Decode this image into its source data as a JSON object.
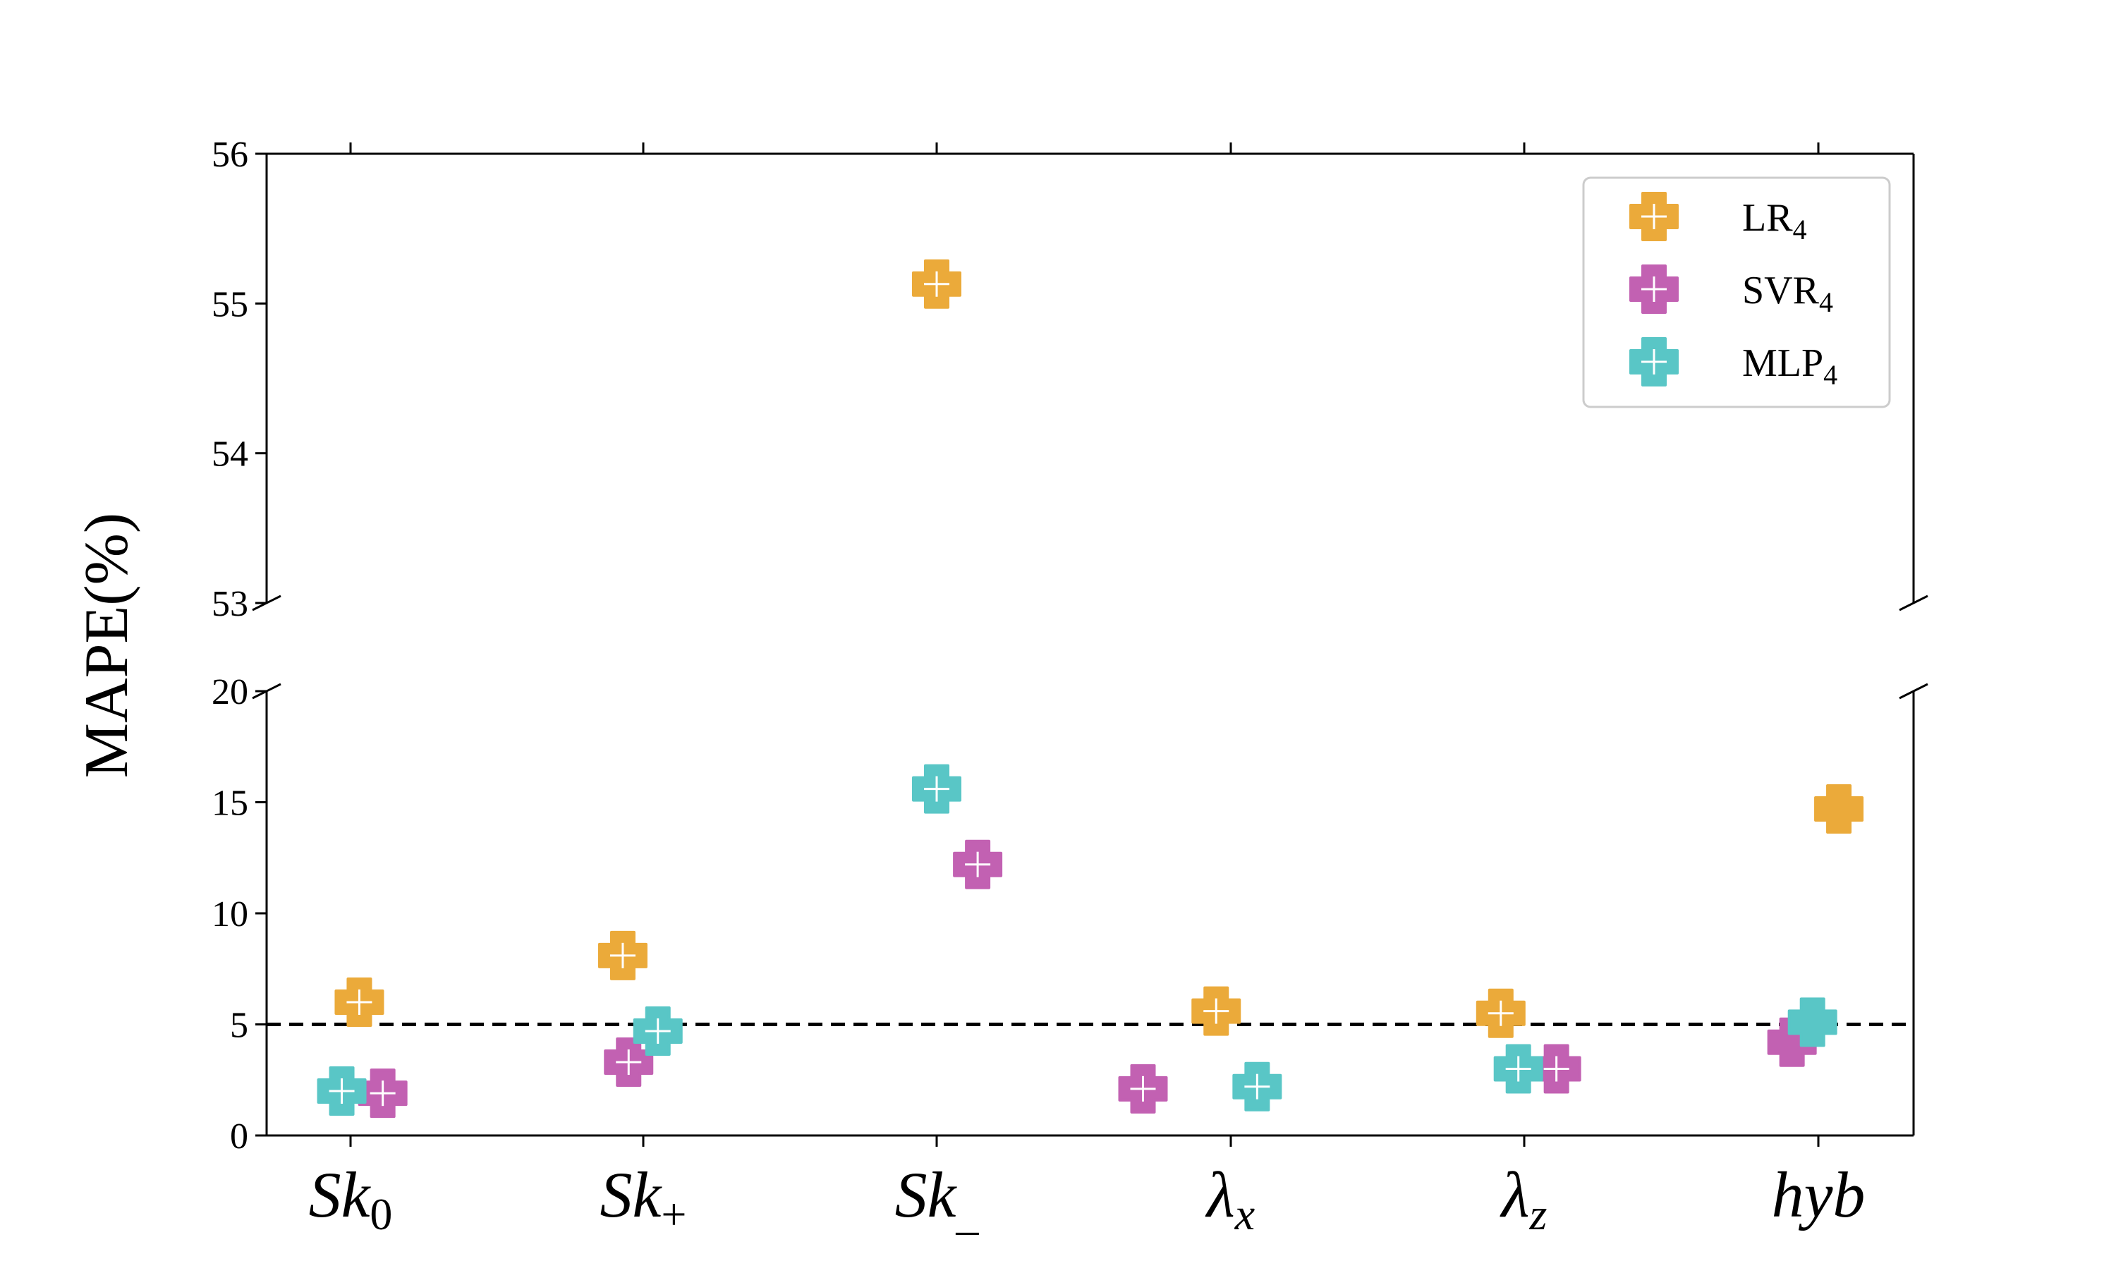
{
  "chart_data": {
    "type": "scatter",
    "title": "",
    "ylabel": "MAPE(%)",
    "xlabel": "",
    "broken_y_axis": true,
    "upper_ylim": [
      53,
      56
    ],
    "lower_ylim": [
      0,
      20
    ],
    "upper_yticks": [
      53,
      54,
      55,
      56
    ],
    "lower_yticks": [
      0,
      5,
      10,
      15,
      20
    ],
    "categories": [
      {
        "main": "Sk",
        "sub": "0"
      },
      {
        "main": "Sk",
        "sub": "+"
      },
      {
        "main": "Sk",
        "sub": "_"
      },
      {
        "main": "λ",
        "sub": "x"
      },
      {
        "main": "λ",
        "sub": "z"
      },
      {
        "main": "hyb",
        "sub": ""
      }
    ],
    "series": [
      {
        "name": "LR",
        "sub": "4",
        "color": "#EBAA3A",
        "offset": 0.03,
        "values": [
          6.0,
          8.1,
          55.13,
          5.6,
          5.5,
          14.7
        ]
      },
      {
        "name": "SVR",
        "sub": "4",
        "color": "#C261B2",
        "offset": 0.11,
        "values": [
          1.9,
          3.3,
          12.2,
          2.1,
          3.0,
          4.2
        ]
      },
      {
        "name": "MLP",
        "sub": "4",
        "color": "#59C6C6",
        "offset": -0.03,
        "values": [
          2.0,
          4.7,
          15.6,
          2.2,
          3.0,
          5.1
        ]
      }
    ],
    "series_offsets_by_category": [
      [
        0.03,
        0.11,
        -0.03
      ],
      [
        -0.07,
        -0.05,
        0.05
      ],
      [
        0.0,
        0.14,
        0.0
      ],
      [
        -0.05,
        -0.3,
        0.09
      ],
      [
        -0.08,
        0.11,
        -0.02
      ],
      [
        0.07,
        -0.09,
        -0.02
      ]
    ],
    "reference_line": {
      "y": 5,
      "style": "dashed",
      "color": "#000000"
    },
    "legend_position": "top-right",
    "grid": false
  }
}
